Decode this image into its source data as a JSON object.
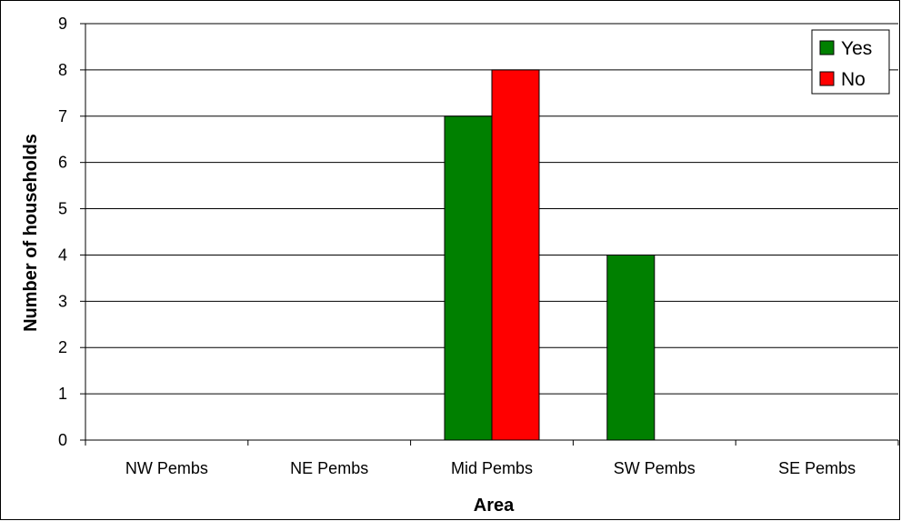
{
  "chart_data": {
    "type": "bar",
    "title": "",
    "xlabel": "Area",
    "ylabel": "Number of households",
    "categories": [
      "NW Pembs",
      "NE Pembs",
      "Mid Pembs",
      "SW Pembs",
      "SE Pembs"
    ],
    "series": [
      {
        "name": "Yes",
        "values": [
          0,
          0,
          7,
          4,
          0
        ],
        "color": "#008000"
      },
      {
        "name": "No",
        "values": [
          0,
          0,
          8,
          0,
          0
        ],
        "color": "#ff0000"
      }
    ],
    "ylim": [
      0,
      9
    ],
    "yticks": [
      "0",
      "1",
      "2",
      "3",
      "4",
      "5",
      "6",
      "7",
      "8",
      "9"
    ],
    "grid": true,
    "legend_position": "top-right"
  }
}
